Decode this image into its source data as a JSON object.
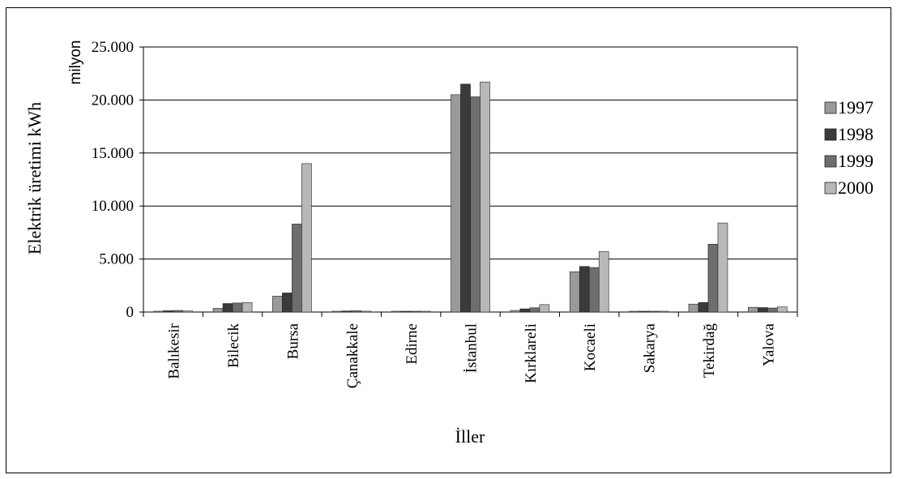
{
  "chart_data": {
    "type": "bar",
    "title": "",
    "xlabel": "İller",
    "ylabel": "Elektrik üretimi  kWh",
    "yunit_label": "milyon",
    "ylim": [
      0,
      25000
    ],
    "yticks": [
      0,
      5000,
      10000,
      15000,
      20000,
      25000
    ],
    "ytick_labels": [
      "0",
      "5.000",
      "10.000",
      "15.000",
      "20.000",
      "25.000"
    ],
    "grid": true,
    "legend_position": "right",
    "categories": [
      "Balıkesir",
      "Bilecik",
      "Bursa",
      "Çanakkale",
      "Edirne",
      "İstanbul",
      "Kırklareli",
      "Kocaeli",
      "Sakarya",
      "Tekirdağ",
      "Yalova"
    ],
    "series": [
      {
        "name": "1997",
        "color": "#9a9a9a",
        "values": [
          80,
          350,
          1500,
          50,
          20,
          20500,
          150,
          3800,
          20,
          750,
          450
        ]
      },
      {
        "name": "1998",
        "color": "#3a3a3a",
        "values": [
          120,
          800,
          1800,
          100,
          20,
          21500,
          300,
          4300,
          20,
          900,
          420
        ]
      },
      {
        "name": "1999",
        "color": "#6e6e6e",
        "values": [
          150,
          850,
          8300,
          120,
          20,
          20300,
          400,
          4200,
          20,
          6400,
          380
        ]
      },
      {
        "name": "2000",
        "color": "#b8b8b8",
        "values": [
          100,
          900,
          14000,
          80,
          20,
          21700,
          700,
          5700,
          20,
          8400,
          480
        ]
      }
    ]
  }
}
